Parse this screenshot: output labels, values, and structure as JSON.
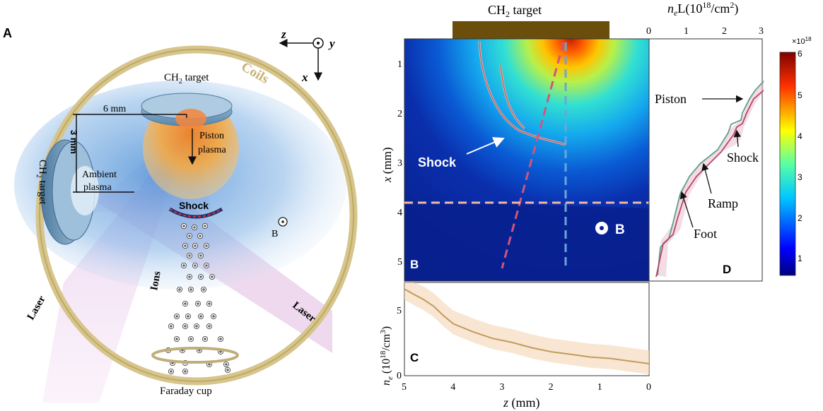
{
  "panel_a": {
    "letter": "A",
    "axis_z": "z",
    "axis_y": "y",
    "axis_x": "x",
    "coils_label": "Coils",
    "top_target_label": "CH",
    "top_target_sub": "2",
    "top_target_rest": " target",
    "left_target_label": "CH",
    "left_target_sub": "2",
    "left_target_rest": " target",
    "dist_horizontal": "6 mm",
    "dist_vertical": "3 mm",
    "piston_label_1": "Piston",
    "piston_label_2": "plasma",
    "ambient_label_1": "Ambient",
    "ambient_label_2": "plasma",
    "shock_label": "Shock",
    "b_label": "B",
    "ions_label": "Ions",
    "laser_left": "Laser",
    "laser_right": "Laser",
    "faraday_label": "Faraday cup"
  },
  "panel_b": {
    "letter": "B",
    "target_label": "CH",
    "target_sub": "2",
    "target_rest": " target",
    "ylabel": "x (mm)",
    "yticks": [
      "1",
      "2",
      "3",
      "4",
      "5"
    ],
    "shock_label": "Shock",
    "b_label": "B"
  },
  "panel_c": {
    "letter": "C",
    "ylabel_main": "n",
    "ylabel_sub": "e",
    "ylabel_rest": " (10",
    "ylabel_sup": "18",
    "ylabel_end": "/cm",
    "ylabel_sup2": "3",
    "ylabel_close": ")",
    "yticks": [
      "0",
      "5"
    ],
    "xticks": [
      "5",
      "4",
      "3",
      "2",
      "1",
      "0"
    ],
    "xlabel": "z (mm)"
  },
  "panel_d": {
    "letter": "D",
    "title_main": "n",
    "title_sub": "e",
    "title_mid": "L(10",
    "title_sup": "18",
    "title_end": "/cm",
    "title_sup2": "2",
    "title_close": ")",
    "xticks": [
      "0",
      "1",
      "2",
      "3"
    ],
    "piston_label": "Piston",
    "shock_label": "Shock",
    "ramp_label": "Ramp",
    "foot_label": "Foot"
  },
  "colorbar": {
    "multiplier": "×10",
    "multiplier_sup": "18",
    "ticks": [
      "1",
      "2",
      "3",
      "4",
      "5",
      "6"
    ]
  },
  "colors": {
    "coil": "#d8c47e",
    "target_top": "#7fa8c6",
    "shock_line": "#c63a3a",
    "orange_plasma": "#f3a43a",
    "blue_plasma": "#6ea6dc",
    "laser": "#d9a2d6",
    "profile_red": "#b94565",
    "profile_green": "#5e9f92",
    "ne_line": "#c49a5c"
  },
  "chart_data": {
    "type": "line",
    "xlabel": "z (mm)",
    "ylabel": "n_e (10^18/cm^3)",
    "xlim": [
      5,
      0
    ],
    "ylim": [
      0,
      7
    ],
    "x": [
      5.0,
      4.8,
      4.6,
      4.4,
      4.2,
      4.0,
      3.6,
      3.2,
      2.8,
      2.4,
      2.0,
      1.6,
      1.2,
      0.8,
      0.4,
      0.0
    ],
    "series": [
      {
        "values": [
          6.5,
          6.1,
          5.7,
          5.2,
          4.5,
          3.9,
          3.3,
          2.8,
          2.5,
          2.1,
          1.8,
          1.6,
          1.4,
          1.3,
          1.1,
          0.9
        ]
      }
    ]
  }
}
